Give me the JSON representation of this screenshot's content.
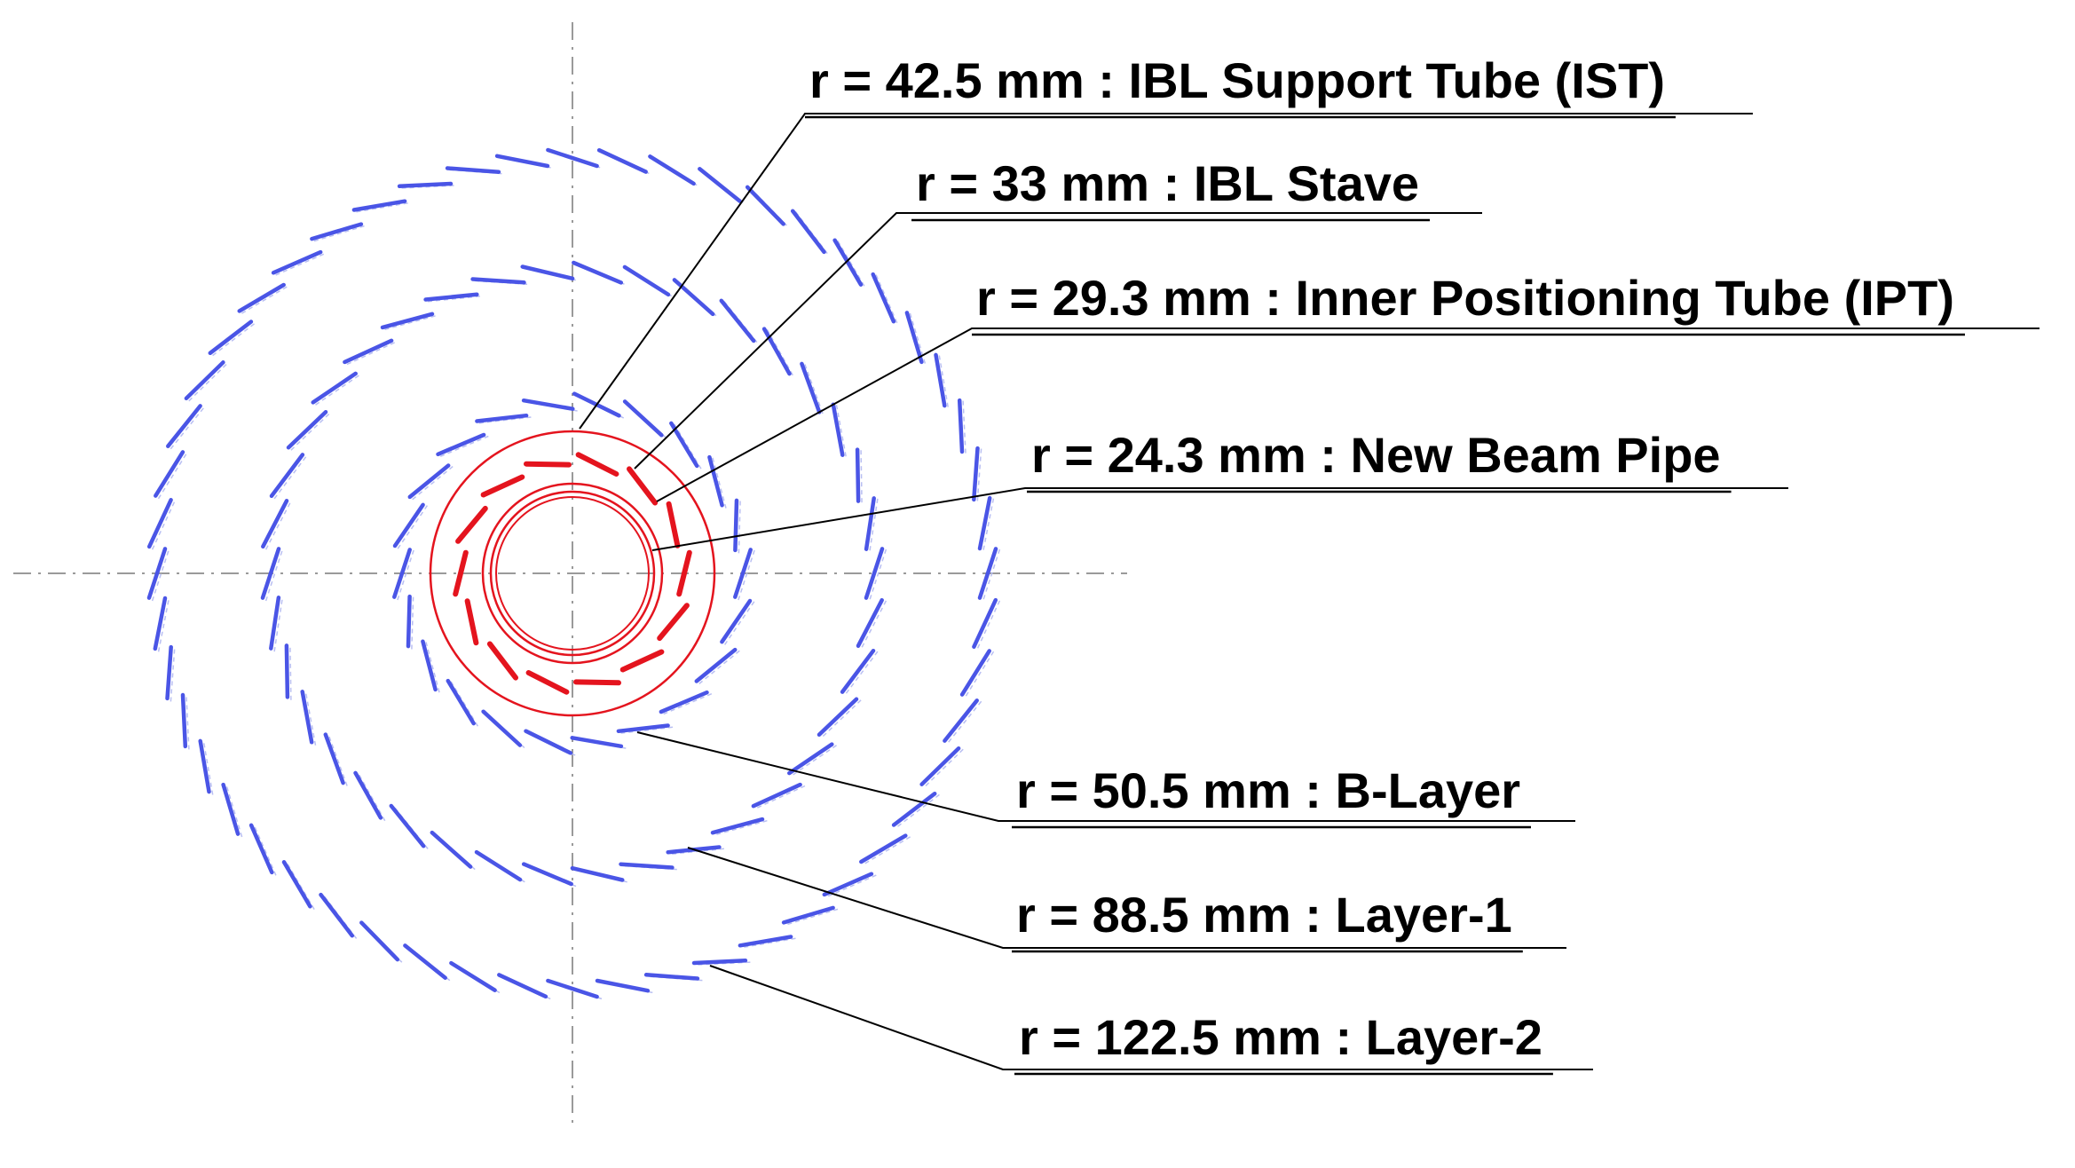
{
  "colors": {
    "outer_layers": "#4a55e6",
    "ibl": "#e4141e",
    "text": "#000000",
    "axis": "#9a9a9a"
  },
  "layers": [
    {
      "id": "ist",
      "label": "r = 42.5 mm : IBL Support Tube (IST)",
      "radius_mm": 42.5,
      "kind": "tube"
    },
    {
      "id": "ibl-stave",
      "label": "r = 33 mm : IBL Stave",
      "radius_mm": 33,
      "kind": "staves",
      "count": 14
    },
    {
      "id": "ipt",
      "label": "r = 29.3 mm : Inner Positioning Tube (IPT)",
      "radius_mm": 29.3,
      "kind": "tube"
    },
    {
      "id": "beam-pipe",
      "label": "r = 24.3 mm : New Beam Pipe",
      "radius_mm": 24.3,
      "kind": "tube"
    },
    {
      "id": "b-layer",
      "label": "r = 50.5 mm : B-Layer",
      "radius_mm": 50.5,
      "kind": "staves",
      "count": 22
    },
    {
      "id": "layer-1",
      "label": "r = 88.5 mm : Layer-1",
      "radius_mm": 88.5,
      "kind": "staves",
      "count": 38
    },
    {
      "id": "layer-2",
      "label": "r = 122.5 mm : Layer-2",
      "radius_mm": 122.5,
      "kind": "staves",
      "count": 52
    }
  ]
}
